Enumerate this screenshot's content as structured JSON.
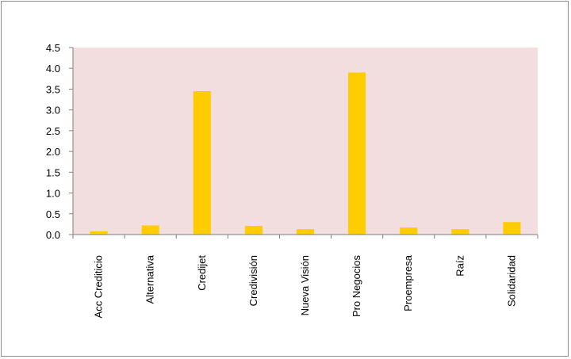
{
  "chart_data": {
    "type": "bar",
    "title": "",
    "xlabel": "",
    "ylabel": "",
    "categories": [
      "Acc Crediticio",
      "Alternativa",
      "Credijet",
      "Credivisión",
      "Nueva Visión",
      "Pro Negocios",
      "Proempresa",
      "Raíz",
      "Solidaridad"
    ],
    "values": [
      0.08,
      0.22,
      3.45,
      0.21,
      0.13,
      3.9,
      0.17,
      0.13,
      0.3
    ],
    "ylim": [
      0,
      4.5
    ],
    "yticks": [
      "0.0",
      "0.5",
      "1.0",
      "1.5",
      "2.0",
      "2.5",
      "3.0",
      "3.5",
      "4.0",
      "4.5"
    ],
    "grid": false,
    "legend": "none",
    "colors": {
      "bar": "#FFCC00",
      "plot_background": "#F2DEDE",
      "axis": "#7f7f7f",
      "frame": "#8c8c8c"
    }
  }
}
